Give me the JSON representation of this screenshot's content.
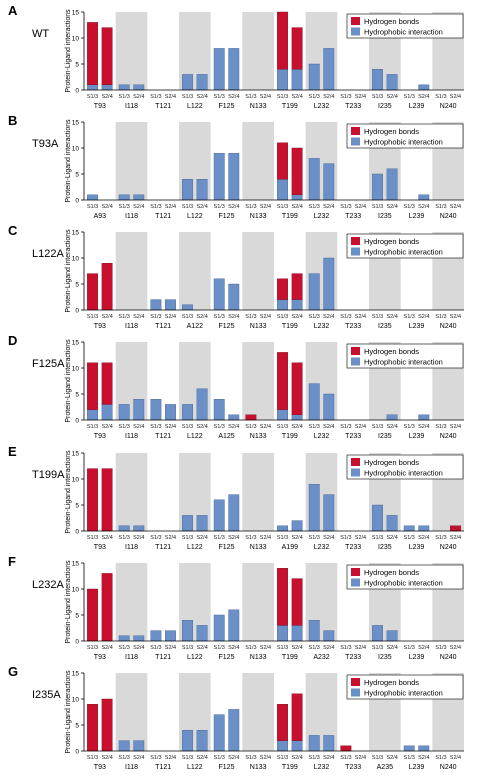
{
  "colors": {
    "hbond": "#c8102e",
    "hydrophobic": "#6b8fc7",
    "stripe": "#d9d9d9",
    "axis": "#000000"
  },
  "chart_data": [
    {
      "panel": "A",
      "variant": "WT",
      "type": "bar",
      "stacked": true,
      "ylabel": "Protein-Ligand interactions",
      "ylim": [
        0,
        15
      ],
      "yticks": [
        0,
        5,
        10,
        15
      ],
      "residues": [
        "T93",
        "I118",
        "T121",
        "L122",
        "F125",
        "N133",
        "T199",
        "L232",
        "T233",
        "I235",
        "L239",
        "N240"
      ],
      "subgroups": [
        "S1/3",
        "S2/4"
      ],
      "series": [
        {
          "name": "Hydrogen bonds",
          "values": [
            12,
            11,
            0,
            0,
            0,
            0,
            0,
            0,
            0,
            0,
            0,
            0,
            11,
            8,
            0,
            0,
            0,
            0,
            0,
            0,
            0,
            0,
            0,
            0
          ]
        },
        {
          "name": "Hydrophobic interaction",
          "values": [
            1,
            1,
            1,
            1,
            0,
            0,
            3,
            3,
            8,
            8,
            0,
            0,
            4,
            4,
            5,
            8,
            0,
            0,
            4,
            3,
            0,
            1,
            0,
            0
          ]
        }
      ],
      "legend_position": "top-right"
    },
    {
      "panel": "B",
      "variant": "T93A",
      "type": "bar",
      "stacked": true,
      "ylabel": "Protein-Ligand interactions",
      "ylim": [
        0,
        15
      ],
      "yticks": [
        0,
        5,
        10,
        15
      ],
      "residues": [
        "A93",
        "I118",
        "T121",
        "L122",
        "F125",
        "N133",
        "T199",
        "L232",
        "T233",
        "I235",
        "L239",
        "N240"
      ],
      "subgroups": [
        "S1/3",
        "S2/4"
      ],
      "series": [
        {
          "name": "Hydrogen bonds",
          "values": [
            0,
            0,
            0,
            0,
            0,
            0,
            0,
            0,
            0,
            0,
            0,
            0,
            7,
            9,
            0,
            0,
            0,
            0,
            0,
            0,
            0,
            0,
            0,
            0
          ]
        },
        {
          "name": "Hydrophobic interaction",
          "values": [
            1,
            0,
            1,
            1,
            0,
            0,
            4,
            4,
            9,
            9,
            0,
            0,
            4,
            1,
            8,
            7,
            0,
            0,
            5,
            6,
            0,
            1,
            0,
            0
          ]
        }
      ],
      "legend_position": "top-right"
    },
    {
      "panel": "C",
      "variant": "L122A",
      "type": "bar",
      "stacked": true,
      "ylabel": "Protein-Ligand interactions",
      "ylim": [
        0,
        15
      ],
      "yticks": [
        0,
        5,
        10,
        15
      ],
      "residues": [
        "T93",
        "I118",
        "T121",
        "A122",
        "F125",
        "N133",
        "T199",
        "L232",
        "T233",
        "I235",
        "L239",
        "N240"
      ],
      "subgroups": [
        "S1/3",
        "S2/4"
      ],
      "series": [
        {
          "name": "Hydrogen bonds",
          "values": [
            7,
            9,
            0,
            0,
            0,
            0,
            0,
            0,
            0,
            0,
            0,
            0,
            4,
            5,
            0,
            0,
            0,
            0,
            0,
            0,
            0,
            0,
            0,
            0
          ]
        },
        {
          "name": "Hydrophobic interaction",
          "values": [
            0,
            0,
            0,
            0,
            2,
            2,
            1,
            0,
            6,
            5,
            0,
            0,
            2,
            2,
            7,
            10,
            0,
            0,
            0,
            0,
            0,
            0,
            0,
            0
          ]
        }
      ],
      "legend_position": "top-right"
    },
    {
      "panel": "D",
      "variant": "F125A",
      "type": "bar",
      "stacked": true,
      "ylabel": "Protein-Ligand interactions",
      "ylim": [
        0,
        15
      ],
      "yticks": [
        0,
        5,
        10,
        15
      ],
      "residues": [
        "T93",
        "I118",
        "T121",
        "L122",
        "A125",
        "N133",
        "T199",
        "L232",
        "T233",
        "I235",
        "L239",
        "N240"
      ],
      "subgroups": [
        "S1/3",
        "S2/4"
      ],
      "series": [
        {
          "name": "Hydrogen bonds",
          "values": [
            9,
            8,
            0,
            0,
            0,
            0,
            0,
            0,
            0,
            0,
            1,
            0,
            11,
            10,
            0,
            0,
            0,
            0,
            0,
            0,
            0,
            0,
            0,
            0
          ]
        },
        {
          "name": "Hydrophobic interaction",
          "values": [
            2,
            3,
            3,
            4,
            4,
            3,
            3,
            6,
            4,
            1,
            0,
            0,
            2,
            1,
            7,
            5,
            0,
            0,
            0,
            1,
            0,
            1,
            0,
            0
          ]
        }
      ],
      "legend_position": "top-right"
    },
    {
      "panel": "E",
      "variant": "T199A",
      "type": "bar",
      "stacked": true,
      "ylabel": "Protein-Ligand interactions",
      "ylim": [
        0,
        15
      ],
      "yticks": [
        0,
        5,
        10,
        15
      ],
      "residues": [
        "T93",
        "I118",
        "T121",
        "L122",
        "F125",
        "N133",
        "A199",
        "L232",
        "T233",
        "I235",
        "L239",
        "N240"
      ],
      "subgroups": [
        "S1/3",
        "S2/4"
      ],
      "series": [
        {
          "name": "Hydrogen bonds",
          "values": [
            12,
            12,
            0,
            0,
            0,
            0,
            0,
            0,
            0,
            0,
            0,
            0,
            0,
            0,
            0,
            0,
            0,
            0,
            0,
            0,
            0,
            0,
            0,
            1
          ]
        },
        {
          "name": "Hydrophobic interaction",
          "values": [
            0,
            0,
            1,
            1,
            0,
            0,
            3,
            3,
            6,
            7,
            0,
            0,
            1,
            2,
            9,
            7,
            0,
            0,
            5,
            3,
            1,
            1,
            0,
            0
          ]
        }
      ],
      "legend_position": "top-right"
    },
    {
      "panel": "F",
      "variant": "L232A",
      "type": "bar",
      "stacked": true,
      "ylabel": "Protein-Ligand interactions",
      "ylim": [
        0,
        15
      ],
      "yticks": [
        0,
        5,
        10,
        15
      ],
      "residues": [
        "T93",
        "I118",
        "T121",
        "L122",
        "F125",
        "N133",
        "T199",
        "A232",
        "T233",
        "I235",
        "L239",
        "N240"
      ],
      "subgroups": [
        "S1/3",
        "S2/4"
      ],
      "series": [
        {
          "name": "Hydrogen bonds",
          "values": [
            10,
            13,
            0,
            0,
            0,
            0,
            0,
            0,
            0,
            0,
            0,
            0,
            11,
            9,
            0,
            0,
            0,
            0,
            0,
            0,
            0,
            0,
            0,
            0
          ]
        },
        {
          "name": "Hydrophobic interaction",
          "values": [
            0,
            0,
            1,
            1,
            2,
            2,
            4,
            3,
            5,
            6,
            0,
            0,
            3,
            3,
            4,
            2,
            0,
            0,
            3,
            2,
            0,
            0,
            0,
            0
          ]
        }
      ],
      "legend_position": "top-right"
    },
    {
      "panel": "G",
      "variant": "I235A",
      "type": "bar",
      "stacked": true,
      "ylabel": "Protein-Ligand interactions",
      "ylim": [
        0,
        15
      ],
      "yticks": [
        0,
        5,
        10,
        15
      ],
      "residues": [
        "T93",
        "I118",
        "T121",
        "L122",
        "F125",
        "N133",
        "T199",
        "L232",
        "T233",
        "A235",
        "L239",
        "N240"
      ],
      "subgroups": [
        "S1/3",
        "S2/4"
      ],
      "series": [
        {
          "name": "Hydrogen bonds",
          "values": [
            9,
            10,
            0,
            0,
            0,
            0,
            0,
            0,
            0,
            0,
            0,
            0,
            7,
            9,
            0,
            0,
            1,
            0,
            0,
            0,
            0,
            0,
            0,
            0
          ]
        },
        {
          "name": "Hydrophobic interaction",
          "values": [
            0,
            0,
            2,
            2,
            0,
            0,
            4,
            4,
            7,
            8,
            0,
            0,
            2,
            2,
            3,
            3,
            0,
            0,
            0,
            0,
            1,
            1,
            0,
            0
          ]
        }
      ],
      "legend_position": "top-right"
    }
  ]
}
